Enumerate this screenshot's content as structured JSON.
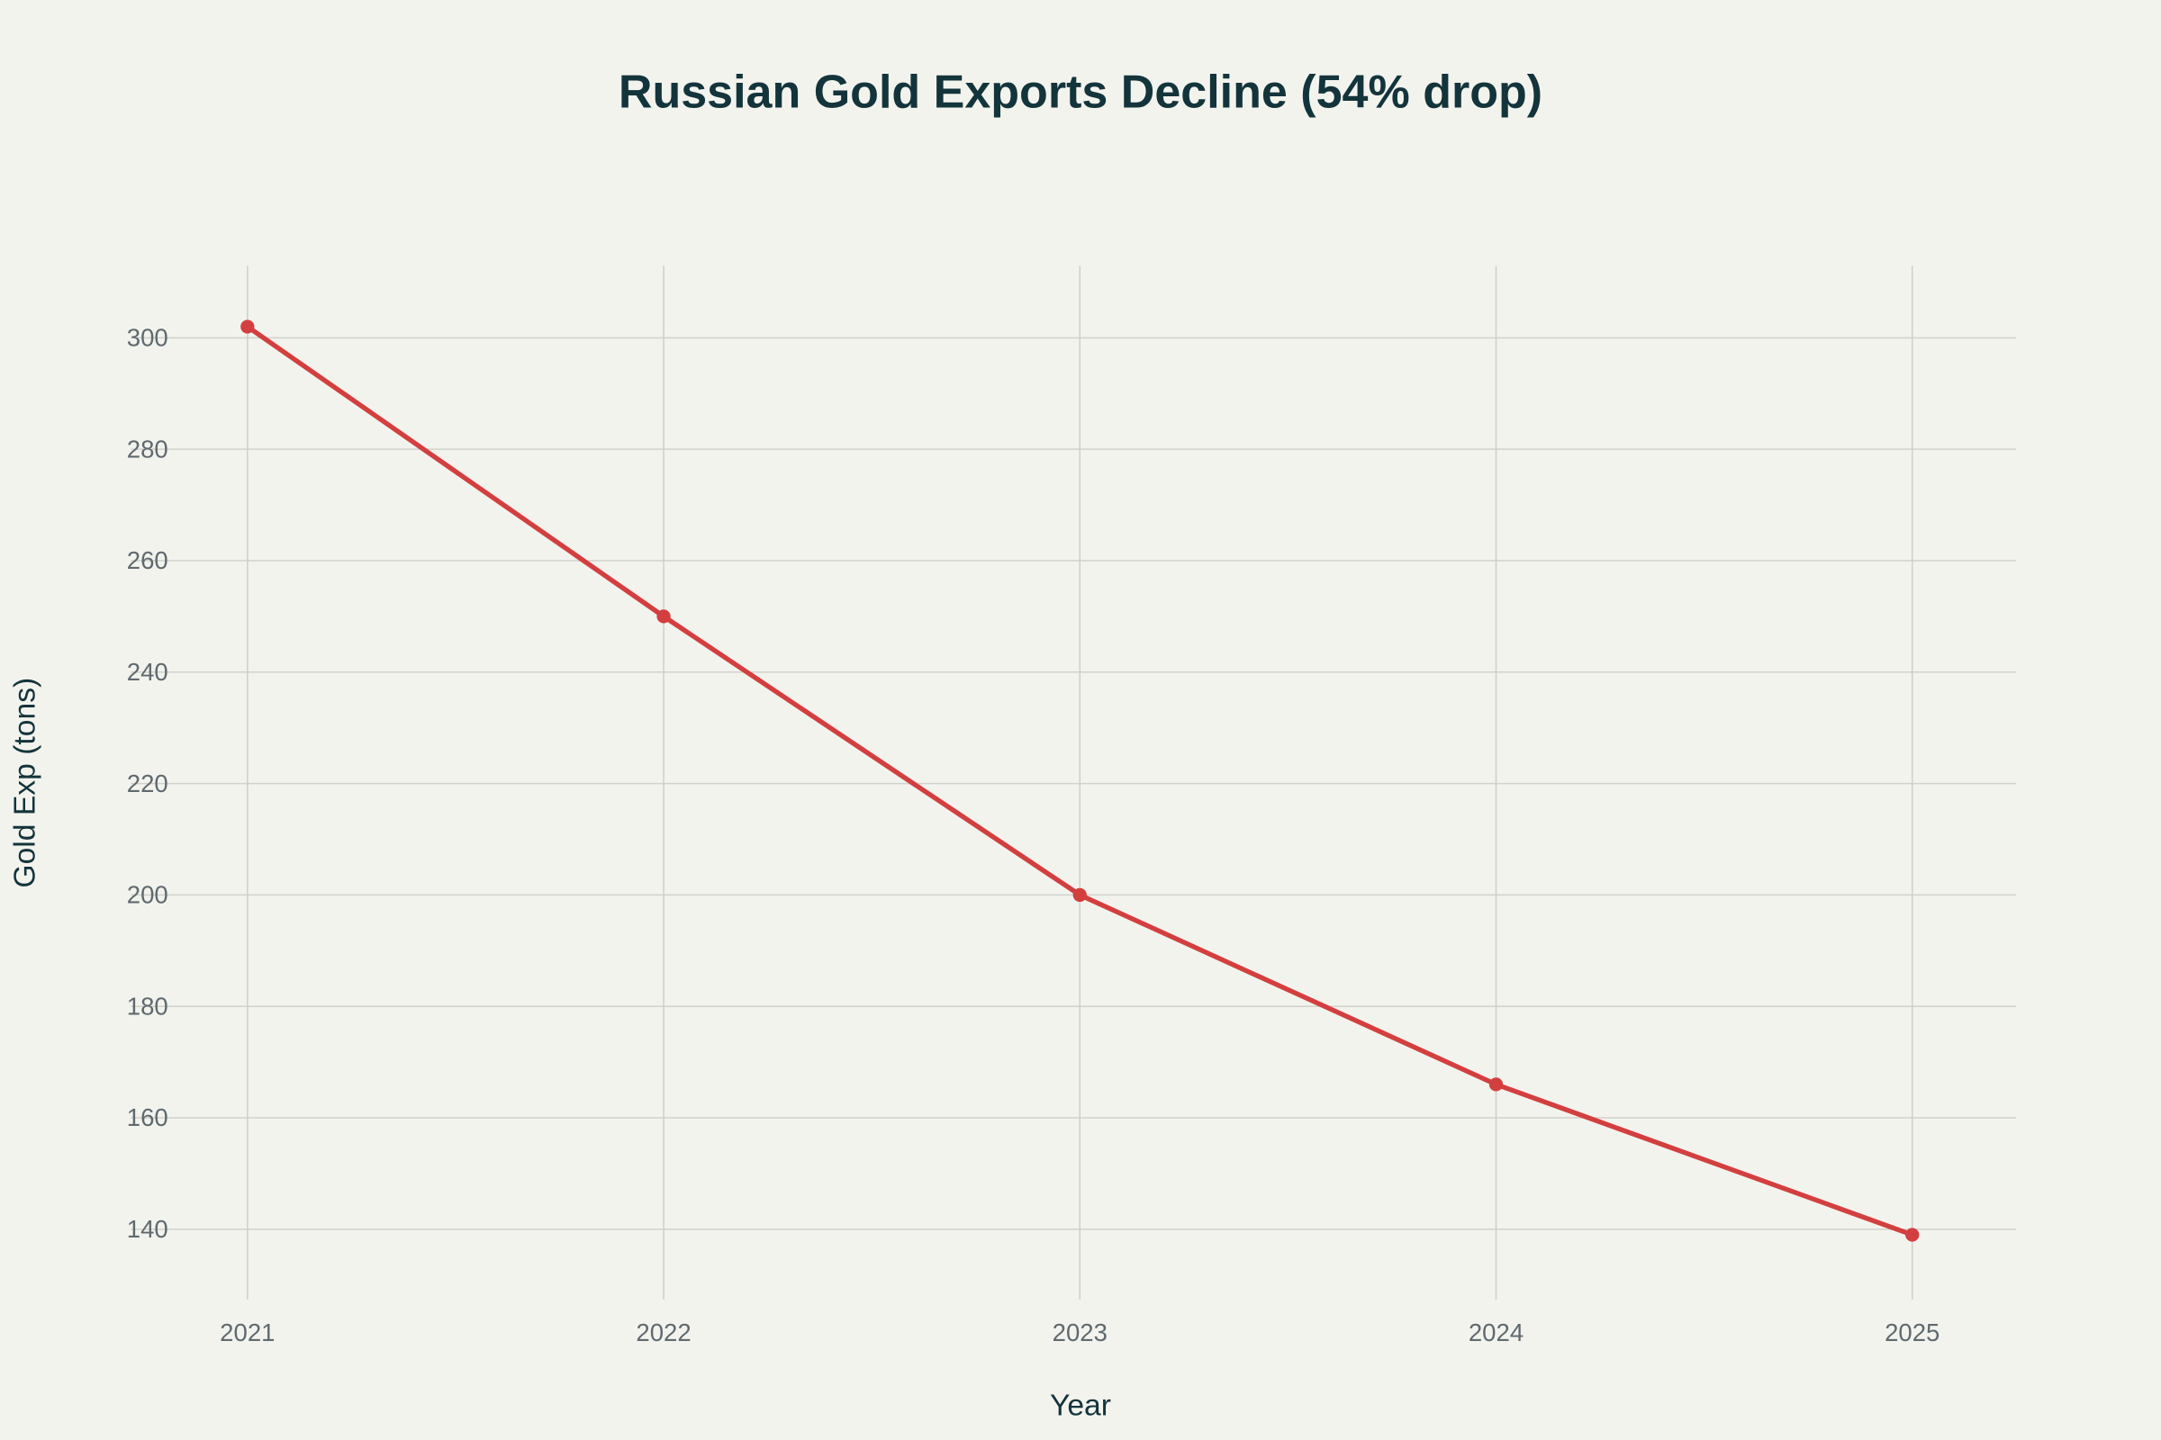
{
  "chart_data": {
    "type": "line",
    "title": "Russian Gold Exports Decline (54% drop)",
    "xlabel": "Year",
    "ylabel": "Gold Exp (tons)",
    "x": [
      2021,
      2022,
      2023,
      2024,
      2025
    ],
    "series": [
      {
        "values": [
          302,
          250,
          200,
          166,
          139
        ],
        "color": "#d33f3f",
        "markers": true
      }
    ],
    "xticks": [
      "2021",
      "2022",
      "2023",
      "2024",
      "2025"
    ],
    "yticks": [
      140,
      160,
      180,
      200,
      220,
      240,
      260,
      280,
      300
    ],
    "xlim": [
      2020.72,
      2025.25
    ],
    "ylim": [
      127.4,
      312.9
    ],
    "grid": true,
    "legend": "none",
    "background": "#f3f3ee"
  }
}
